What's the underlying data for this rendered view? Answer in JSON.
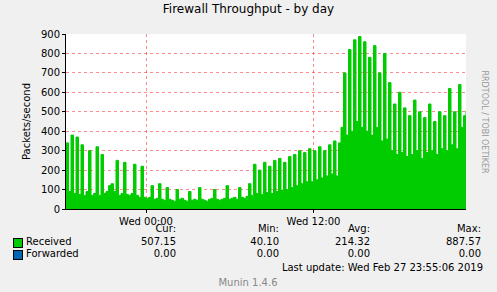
{
  "chart_data": {
    "type": "area",
    "title": "Firewall Throughput - by day",
    "y_label": "Packets/second",
    "side_text": "RRDTOOL / TOBI OETIKER",
    "categories": [
      null,
      null,
      null,
      null,
      null,
      null,
      null,
      null,
      null,
      null,
      null,
      null,
      null,
      null,
      null,
      null,
      null,
      null,
      null,
      null,
      null,
      null,
      null,
      null,
      null,
      null,
      null,
      null,
      null,
      null,
      null,
      null,
      "Wed 00:00",
      null,
      null,
      null,
      null,
      null,
      null,
      null,
      null,
      null,
      null,
      null,
      null,
      null,
      null,
      null,
      null,
      null,
      null,
      null,
      null,
      null,
      null,
      null,
      null,
      null,
      null,
      null,
      null,
      null,
      null,
      null,
      null,
      null,
      null,
      null,
      null,
      null,
      null,
      null,
      null,
      null,
      null,
      null,
      null,
      null,
      null,
      null,
      null,
      null,
      null,
      null,
      null,
      null,
      null,
      null,
      null,
      null,
      null,
      null,
      null,
      null,
      null,
      null,
      null,
      null,
      null,
      "Wed 12:00",
      null,
      null,
      null,
      null,
      null,
      null,
      null,
      null,
      null,
      null,
      null,
      null,
      null,
      null,
      null,
      null,
      null,
      null,
      null,
      null,
      null,
      null,
      null,
      null,
      null,
      null,
      null,
      null,
      null,
      null,
      null,
      null,
      null,
      null,
      null,
      null,
      null,
      null,
      null,
      null,
      null,
      null,
      null,
      null,
      null,
      null,
      null,
      null,
      null,
      null,
      null,
      null,
      null,
      null,
      null,
      null,
      null,
      null,
      null,
      null,
      null
    ],
    "series": [
      {
        "name": "Received",
        "color": "#00cc00",
        "values": [
          340,
          90,
          380,
          80,
          370,
          75,
          330,
          70,
          90,
          300,
          70,
          80,
          320,
          70,
          280,
          80,
          90,
          120,
          130,
          90,
          250,
          70,
          80,
          240,
          75,
          70,
          80,
          230,
          70,
          60,
          220,
          60,
          55,
          60,
          120,
          50,
          55,
          130,
          50,
          45,
          110,
          50,
          45,
          40,
          100,
          50,
          55,
          45,
          40,
          90,
          45,
          50,
          45,
          110,
          50,
          45,
          40,
          50,
          55,
          100,
          50,
          45,
          50,
          55,
          120,
          50,
          55,
          60,
          50,
          110,
          60,
          55,
          65,
          130,
          70,
          230,
          80,
          200,
          75,
          240,
          85,
          220,
          80,
          250,
          90,
          260,
          95,
          240,
          100,
          270,
          110,
          280,
          120,
          300,
          130,
          290,
          140,
          310,
          140,
          300,
          150,
          320,
          160,
          300,
          170,
          330,
          180,
          350,
          170,
          340,
          420,
          700,
          380,
          820,
          400,
          870,
          450,
          887,
          420,
          860,
          400,
          780,
          380,
          840,
          420,
          700,
          350,
          800,
          360,
          650,
          300,
          540,
          280,
          600,
          290,
          520,
          270,
          480,
          280,
          560,
          300,
          500,
          260,
          470,
          290,
          540,
          300,
          450,
          280,
          500,
          310,
          480,
          300,
          620,
          330,
          500,
          310,
          640,
          420,
          480,
          507
        ]
      },
      {
        "name": "Forwarded",
        "color": "#0066b3",
        "values": [
          0,
          0,
          0,
          0,
          0,
          0,
          0,
          0,
          0,
          0,
          0,
          0,
          0,
          0,
          0,
          0,
          0,
          0,
          0,
          0,
          0,
          0,
          0,
          0,
          0,
          0,
          0,
          0,
          0,
          0,
          0,
          0,
          0,
          0,
          0,
          0,
          0,
          0,
          0,
          0,
          0,
          0,
          0,
          0,
          0,
          0,
          0,
          0,
          0,
          0,
          0,
          0,
          0,
          0,
          0,
          0,
          0,
          0,
          0,
          0,
          0,
          0,
          0,
          0,
          0,
          0,
          0,
          0,
          0,
          0,
          0,
          0,
          0,
          0,
          0,
          0,
          0,
          0,
          0,
          0,
          0,
          0,
          0,
          0,
          0,
          0,
          0,
          0,
          0,
          0,
          0,
          0,
          0,
          0,
          0,
          0,
          0,
          0,
          0,
          0,
          0,
          0,
          0,
          0,
          0,
          0,
          0,
          0,
          0,
          0,
          0,
          0,
          0,
          0,
          0,
          0,
          0,
          0,
          0,
          0,
          0,
          0,
          0,
          0,
          0,
          0,
          0,
          0,
          0,
          0,
          0,
          0,
          0,
          0,
          0,
          0,
          0,
          0,
          0,
          0,
          0,
          0,
          0,
          0,
          0,
          0,
          0,
          0,
          0,
          0,
          0,
          0,
          0,
          0,
          0,
          0,
          0,
          0,
          0,
          0,
          0
        ]
      }
    ],
    "ylim": [
      0,
      900
    ],
    "yticks": [
      0,
      100,
      200,
      300,
      400,
      500,
      600,
      700,
      800,
      900
    ],
    "grid": true,
    "summary": {
      "columns": [
        "Cur:",
        "Min:",
        "Avg:",
        "Max:"
      ],
      "rows": [
        [
          "507.15",
          "40.10",
          "214.32",
          "887.57"
        ],
        [
          "0.00",
          "0.00",
          "0.00",
          "0.00"
        ]
      ]
    },
    "footer": "Last update: Wed Feb 27 23:55:06 2019",
    "version": "Munin 1.4.6"
  }
}
